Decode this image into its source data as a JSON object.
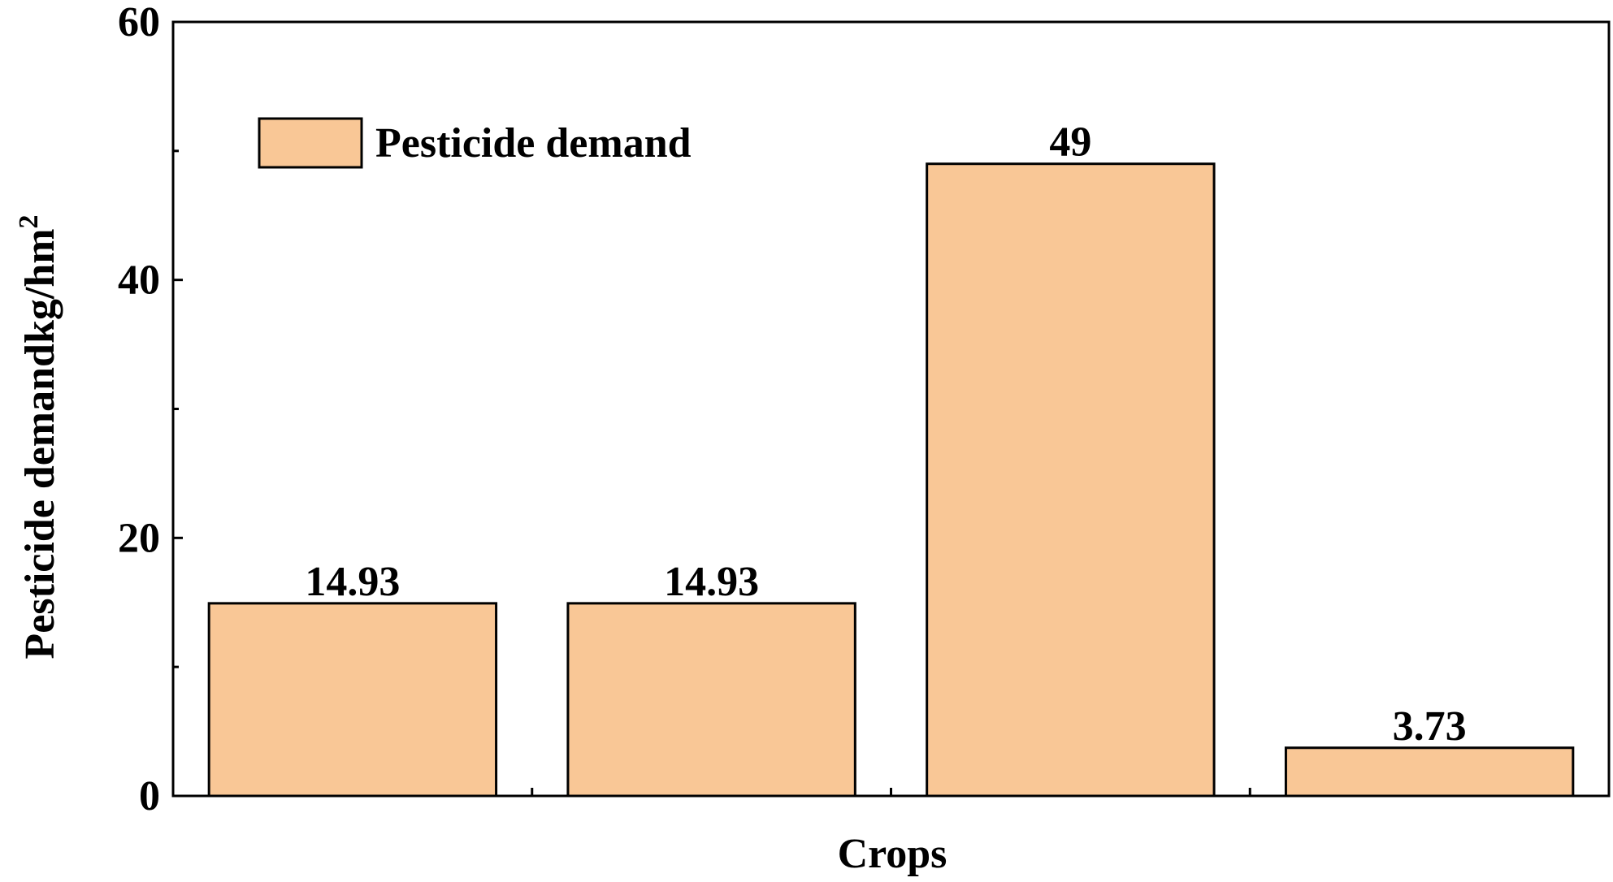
{
  "chart_data": {
    "type": "bar",
    "categories": [
      "",
      "",
      "",
      ""
    ],
    "series": [
      {
        "name": "Pesticide demand",
        "values": [
          14.93,
          14.93,
          49,
          3.73
        ],
        "data_labels": [
          "14.93",
          "14.93",
          "49",
          "3.73"
        ]
      }
    ],
    "xlabel": "Crops",
    "ylabel": "Pesticide demandkg/hm",
    "ylabel_superscript": "2",
    "ylim": [
      0,
      60
    ],
    "yticks": [
      0,
      20,
      40,
      60
    ],
    "ytick_labels": [
      "0",
      "20",
      "40",
      "60"
    ],
    "legend_position": "top-left",
    "grid": false,
    "colors": {
      "bar_fill": "#F9C796",
      "bar_stroke": "#000000",
      "axis": "#000000"
    }
  }
}
